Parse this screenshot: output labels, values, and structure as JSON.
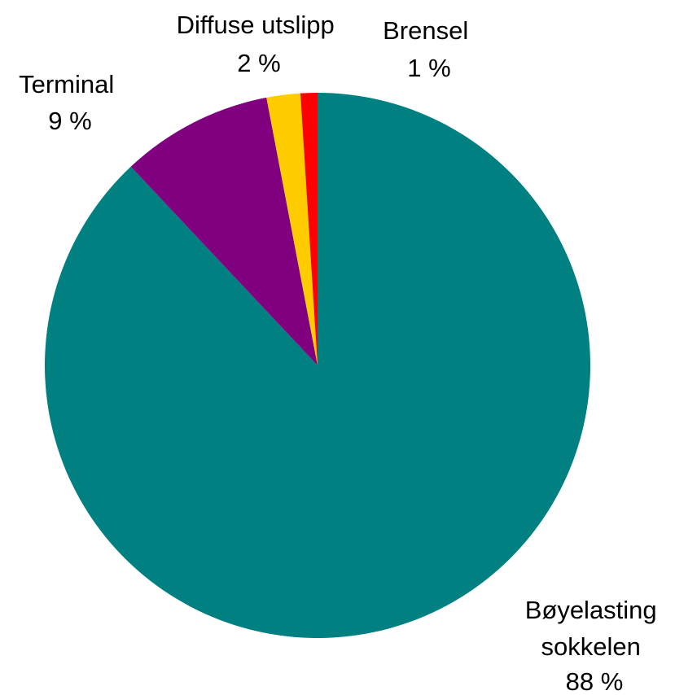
{
  "chart_data": {
    "type": "pie",
    "title": "",
    "start_angle_deg": 0,
    "direction": "clockwise",
    "legend": "none",
    "slices": [
      {
        "label_lines": [
          "Bøyelasting",
          "sokkelen"
        ],
        "value_label": "88 %",
        "value": 88,
        "color": "#008080"
      },
      {
        "label_lines": [
          "Terminal"
        ],
        "value_label": "9 %",
        "value": 9,
        "color": "#800080"
      },
      {
        "label_lines": [
          "Diffuse utslipp"
        ],
        "value_label": "2 %",
        "value": 2,
        "color": "#FFCC00"
      },
      {
        "label_lines": [
          "Brensel"
        ],
        "value_label": "1 %",
        "value": 1,
        "color": "#FF0000"
      }
    ]
  }
}
